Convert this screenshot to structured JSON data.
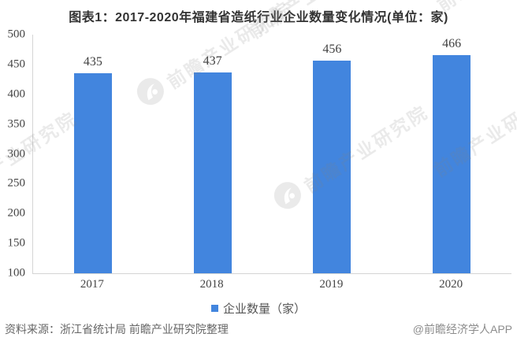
{
  "title": "图表1：2017-2020年福建省造纸行业企业数量变化情况(单位：家)",
  "chart_data": {
    "type": "bar",
    "title": "图表1：2017-2020年福建省造纸行业企业数量变化情况(单位：家)",
    "categories": [
      "2017",
      "2018",
      "2019",
      "2020"
    ],
    "series": [
      {
        "name": "企业数量（家）",
        "values": [
          435,
          437,
          456,
          466
        ]
      }
    ],
    "data_labels": [
      435,
      437,
      456,
      466
    ],
    "xlabel": "",
    "ylabel": "",
    "ylim": [
      100,
      500
    ],
    "yticks": [
      100,
      150,
      200,
      250,
      300,
      350,
      400,
      450,
      500
    ],
    "grid": false,
    "legend_position": "bottom",
    "bar_color": "#4285DE"
  },
  "legend": {
    "label": "企业数量（家）",
    "swatch_color": "#4285DE"
  },
  "footer": {
    "source": "资料来源：浙江省统计局 前瞻产业研究院整理",
    "credit": "@前瞻经济学人APP"
  },
  "watermark": {
    "text": "前瞻产业研究院"
  },
  "colors": {
    "bar": "#4285DE",
    "axis_line": "#d4d4d4",
    "title_text": "#333333",
    "tick_text": "#444444",
    "source_text": "#666666",
    "credit_text": "#8c8c8c"
  }
}
